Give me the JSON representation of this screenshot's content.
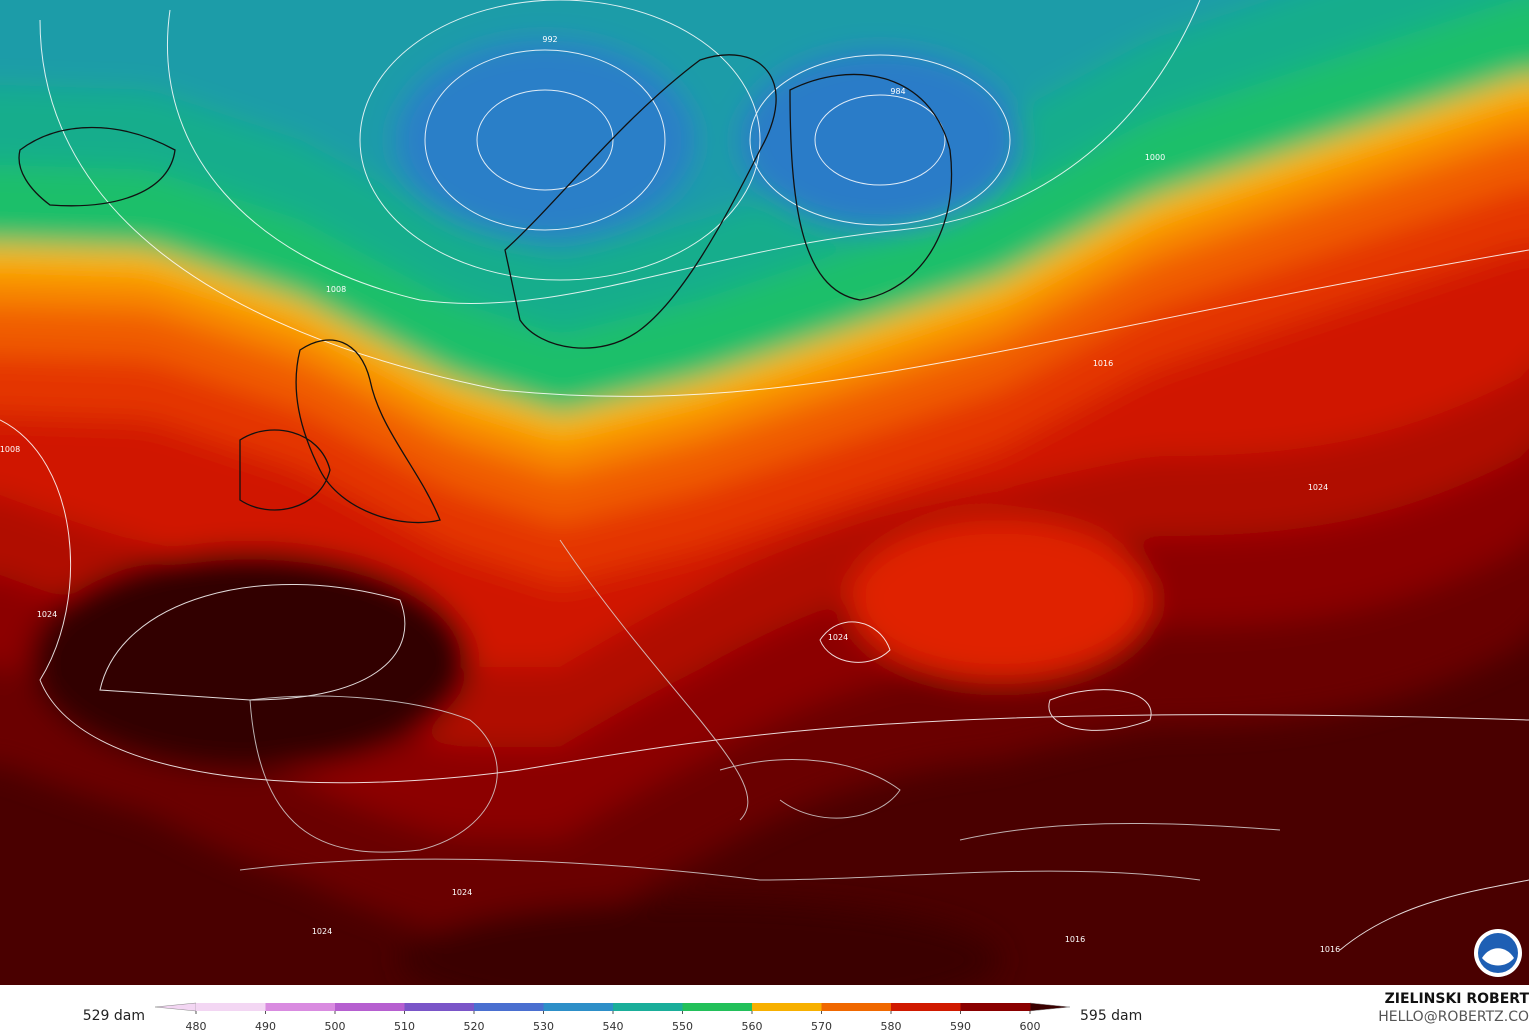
{
  "map": {
    "isobar_labels": [
      992,
      984,
      1000,
      1008,
      1016,
      1024,
      1008,
      1024,
      1024,
      1024,
      1016,
      1016,
      1024
    ],
    "colorbar": {
      "min_label": "529 dam",
      "max_label": "595 dam",
      "ticks": [
        480,
        490,
        500,
        510,
        520,
        530,
        540,
        550,
        560,
        570,
        580,
        590,
        600
      ],
      "colors": [
        "#f3d6f3",
        "#d98be0",
        "#b65fd0",
        "#7a55c8",
        "#4a6fd0",
        "#2d8fc8",
        "#1aae9a",
        "#22c05a",
        "#f7b000",
        "#f06800",
        "#d01a00",
        "#8a0000",
        "#3a0000"
      ]
    },
    "credits": {
      "author": "ZIELINSKI ROBERT",
      "contact": "HELLO@ROBERTZ.CO"
    }
  }
}
